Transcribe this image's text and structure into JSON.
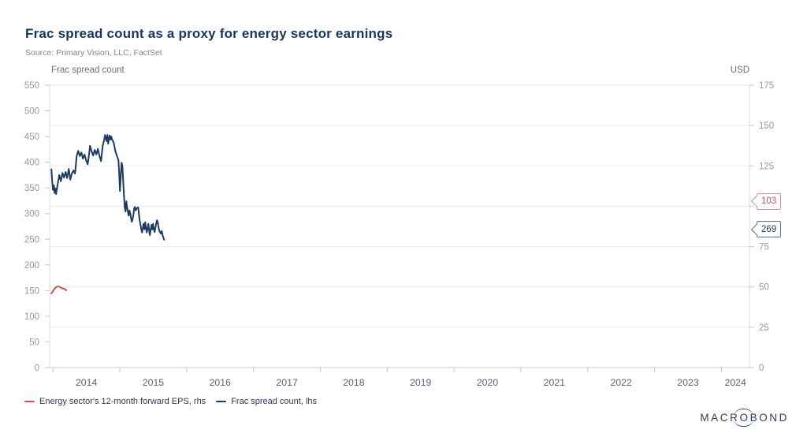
{
  "header": {
    "title": "Frac spread count as a proxy for energy sector earnings",
    "source": "Source: Primary Vision, LLC, FactSet"
  },
  "legend": {
    "items": [
      {
        "label": "Energy sector's 12-month forward EPS, rhs"
      },
      {
        "label": "Frac spread count, lhs"
      }
    ]
  },
  "logo": {
    "pre": "MACR",
    "o": "O",
    "post": "BOND"
  },
  "chart_data": {
    "type": "line",
    "title": "Frac spread count as a proxy for energy sector earnings",
    "grid": "horizontal",
    "legend_position": "bottom-left",
    "left_axis": {
      "label": "Frac spread count",
      "min": 0,
      "max": 550,
      "ticks": [
        0,
        50,
        100,
        150,
        200,
        250,
        300,
        350,
        400,
        450,
        500,
        550
      ]
    },
    "right_axis": {
      "label": "USD",
      "min": 0,
      "max": 175,
      "ticks": [
        0,
        25,
        50,
        75,
        100,
        125,
        150,
        175
      ]
    },
    "x_axis": {
      "min": 2013.95,
      "max": 2024.42,
      "years": [
        2014,
        2015,
        2016,
        2017,
        2018,
        2019,
        2020,
        2021,
        2022,
        2023,
        2024
      ],
      "labels": [
        "2014",
        "2015",
        "2016",
        "2017",
        "2018",
        "2019",
        "2020",
        "2021",
        "2022",
        "2023",
        "2024"
      ]
    },
    "series": [
      {
        "name": "Energy sector's 12-month forward EPS, rhs",
        "axis": "right",
        "color": "#c9515c",
        "callout_value": "103",
        "callout_border": "#e08b94",
        "callout_text": "#c9515c",
        "points": [
          [
            2013.976,
            45.9
          ],
          [
            2014.0,
            47.4
          ],
          [
            2014.024,
            48.9
          ],
          [
            2014.047,
            49.8
          ],
          [
            2014.071,
            50.3
          ],
          [
            2014.094,
            50.1
          ],
          [
            2014.118,
            49.6
          ],
          [
            2014.142,
            49.1
          ],
          [
            2014.165,
            48.9
          ],
          [
            2014.2,
            47.9
          ]
        ]
      },
      {
        "name": "Frac spread count, lhs",
        "axis": "left",
        "color": "#1e3a63",
        "callout_value": "269",
        "callout_border": "#5a6e85",
        "callout_text": "#24395b",
        "points": [
          [
            2013.976,
            386
          ],
          [
            2013.988,
            364
          ],
          [
            2014.0,
            346
          ],
          [
            2014.012,
            355
          ],
          [
            2014.024,
            340
          ],
          [
            2014.035,
            349
          ],
          [
            2014.047,
            338
          ],
          [
            2014.071,
            358
          ],
          [
            2014.094,
            375
          ],
          [
            2014.118,
            363
          ],
          [
            2014.142,
            379
          ],
          [
            2014.165,
            370
          ],
          [
            2014.189,
            381
          ],
          [
            2014.212,
            369
          ],
          [
            2014.236,
            387
          ],
          [
            2014.259,
            366
          ],
          [
            2014.283,
            378
          ],
          [
            2014.307,
            384
          ],
          [
            2014.33,
            378
          ],
          [
            2014.354,
            412
          ],
          [
            2014.377,
            422
          ],
          [
            2014.401,
            412
          ],
          [
            2014.425,
            419
          ],
          [
            2014.448,
            407
          ],
          [
            2014.472,
            415
          ],
          [
            2014.495,
            404
          ],
          [
            2014.519,
            396
          ],
          [
            2014.542,
            418
          ],
          [
            2014.554,
            432
          ],
          [
            2014.578,
            421
          ],
          [
            2014.601,
            413
          ],
          [
            2014.625,
            424
          ],
          [
            2014.649,
            415
          ],
          [
            2014.672,
            426
          ],
          [
            2014.696,
            412
          ],
          [
            2014.719,
            402
          ],
          [
            2014.743,
            432
          ],
          [
            2014.767,
            444
          ],
          [
            2014.778,
            453
          ],
          [
            2014.79,
            447
          ],
          [
            2014.802,
            441
          ],
          [
            2014.814,
            453
          ],
          [
            2014.825,
            436
          ],
          [
            2014.837,
            445
          ],
          [
            2014.849,
            452
          ],
          [
            2014.861,
            444
          ],
          [
            2014.873,
            450
          ],
          [
            2014.884,
            444
          ],
          [
            2014.908,
            438
          ],
          [
            2014.932,
            422
          ],
          [
            2014.955,
            413
          ],
          [
            2014.979,
            404
          ],
          [
            2014.991,
            376
          ],
          [
            2015.002,
            344
          ],
          [
            2015.014,
            372
          ],
          [
            2015.026,
            399
          ],
          [
            2015.038,
            392
          ],
          [
            2015.05,
            364
          ],
          [
            2015.061,
            338
          ],
          [
            2015.073,
            313
          ],
          [
            2015.085,
            304
          ],
          [
            2015.097,
            324
          ],
          [
            2015.108,
            313
          ],
          [
            2015.12,
            304
          ],
          [
            2015.132,
            296
          ],
          [
            2015.144,
            306
          ],
          [
            2015.156,
            300
          ],
          [
            2015.167,
            292
          ],
          [
            2015.179,
            284
          ],
          [
            2015.191,
            289
          ],
          [
            2015.203,
            298
          ],
          [
            2015.214,
            310
          ],
          [
            2015.226,
            313
          ],
          [
            2015.238,
            306
          ],
          [
            2015.25,
            310
          ],
          [
            2015.274,
            312
          ],
          [
            2015.285,
            300
          ],
          [
            2015.297,
            287
          ],
          [
            2015.309,
            278
          ],
          [
            2015.321,
            269
          ],
          [
            2015.332,
            263
          ],
          [
            2015.344,
            272
          ],
          [
            2015.356,
            280
          ],
          [
            2015.368,
            269
          ],
          [
            2015.38,
            283
          ],
          [
            2015.391,
            273
          ],
          [
            2015.403,
            263
          ],
          [
            2015.415,
            272
          ],
          [
            2015.427,
            280
          ],
          [
            2015.439,
            266
          ],
          [
            2015.45,
            258
          ],
          [
            2015.462,
            269
          ],
          [
            2015.474,
            278
          ],
          [
            2015.486,
            269
          ],
          [
            2015.497,
            280
          ],
          [
            2015.509,
            270
          ],
          [
            2015.521,
            264
          ],
          [
            2015.533,
            273
          ],
          [
            2015.545,
            281
          ],
          [
            2015.556,
            287
          ],
          [
            2015.568,
            283
          ],
          [
            2015.58,
            273
          ],
          [
            2015.592,
            266
          ],
          [
            2015.615,
            261
          ],
          [
            2015.627,
            266
          ],
          [
            2015.639,
            258
          ],
          [
            2015.651,
            253
          ],
          [
            2015.663,
            249
          ]
        ]
      }
    ]
  }
}
